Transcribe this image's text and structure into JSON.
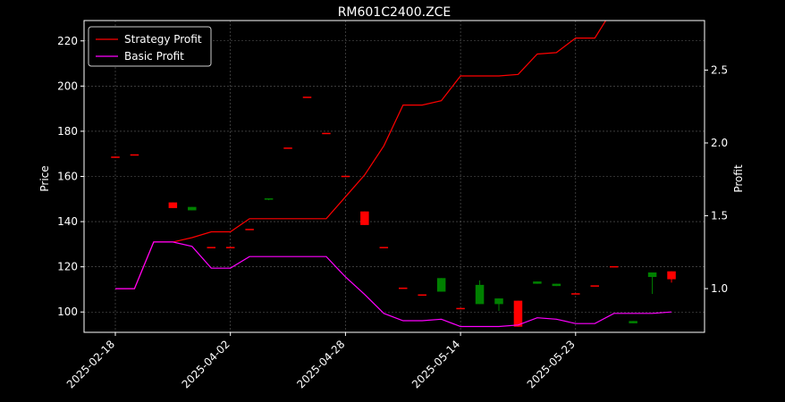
{
  "chart_data": {
    "type": "line",
    "title": "RM601C2400.ZCE",
    "ylabel_left": "Price",
    "ylabel_right": "Profit",
    "x_tick_labels": [
      "2025-02-18",
      "2025-04-02",
      "2025-04-28",
      "2025-05-14",
      "2025-05-23"
    ],
    "x_tick_positions": [
      0,
      6,
      12,
      18,
      24
    ],
    "left_ylim": [
      91,
      229
    ],
    "left_yticks": [
      100,
      120,
      140,
      160,
      180,
      200,
      220
    ],
    "right_ylim": [
      0.7,
      2.84
    ],
    "right_yticks": [
      1.0,
      1.5,
      2.0,
      2.5
    ],
    "right_ytick_labels": [
      "1.0",
      "1.5",
      "2.0",
      "2.5"
    ],
    "grid": true,
    "legend_position": "upper-left",
    "colors": {
      "background": "#000000",
      "up": "#ff0000",
      "down": "#008000",
      "strategy": "#ff0000",
      "basic": "#ff00ff",
      "grid": "#888888"
    },
    "candles": [
      {
        "i": 0,
        "open": 168.5,
        "close": 168.5,
        "high": 168.5,
        "low": 168.5
      },
      {
        "i": 1,
        "open": 169.5,
        "close": 169.5,
        "high": 169.5,
        "low": 169.5
      },
      {
        "i": 3,
        "open": 146,
        "close": 148.5,
        "high": 148.5,
        "low": 146
      },
      {
        "i": 4,
        "open": 146.5,
        "close": 145,
        "high": 146.5,
        "low": 145
      },
      {
        "i": 5,
        "open": 128.5,
        "close": 128.5,
        "high": 128.5,
        "low": 128.5
      },
      {
        "i": 6,
        "open": 128.5,
        "close": 128.5,
        "high": 128.5,
        "low": 128.5
      },
      {
        "i": 7,
        "open": 136.5,
        "close": 136.5,
        "high": 136.5,
        "low": 136.5
      },
      {
        "i": 8,
        "open": 150,
        "close": 149.5,
        "high": 150,
        "low": 149.5
      },
      {
        "i": 9,
        "open": 172.5,
        "close": 172.5,
        "high": 172.5,
        "low": 172.5
      },
      {
        "i": 10,
        "open": 195,
        "close": 195,
        "high": 195,
        "low": 195
      },
      {
        "i": 11,
        "open": 179,
        "close": 179,
        "high": 179,
        "low": 179
      },
      {
        "i": 12,
        "open": 160,
        "close": 160,
        "high": 160,
        "low": 160
      },
      {
        "i": 13,
        "open": 138.5,
        "close": 144.5,
        "high": 144.5,
        "low": 138.5
      },
      {
        "i": 14,
        "open": 128.5,
        "close": 128.5,
        "high": 128.5,
        "low": 128.5
      },
      {
        "i": 15,
        "open": 110.5,
        "close": 110.5,
        "high": 110.5,
        "low": 110.5
      },
      {
        "i": 16,
        "open": 107.5,
        "close": 107.5,
        "high": 107.5,
        "low": 107.5
      },
      {
        "i": 17,
        "open": 115,
        "close": 109,
        "high": 115,
        "low": 109
      },
      {
        "i": 18,
        "open": 101.5,
        "close": 101.5,
        "high": 101.5,
        "low": 101.5
      },
      {
        "i": 19,
        "open": 112,
        "close": 103.5,
        "high": 114,
        "low": 103.5
      },
      {
        "i": 20,
        "open": 106,
        "close": 103.5,
        "high": 106,
        "low": 100.5
      },
      {
        "i": 21,
        "open": 93.5,
        "close": 105,
        "high": 105,
        "low": 93.5
      },
      {
        "i": 22,
        "open": 113.5,
        "close": 112.5,
        "high": 113.5,
        "low": 112.5
      },
      {
        "i": 23,
        "open": 112.5,
        "close": 111.5,
        "high": 112.5,
        "low": 111.5
      },
      {
        "i": 24,
        "open": 108,
        "close": 108,
        "high": 108,
        "low": 108
      },
      {
        "i": 25,
        "open": 111.5,
        "close": 111.5,
        "high": 111.5,
        "low": 111.5
      },
      {
        "i": 26,
        "open": 120,
        "close": 120,
        "high": 120,
        "low": 120
      },
      {
        "i": 27,
        "open": 96,
        "close": 95,
        "high": 96,
        "low": 95
      },
      {
        "i": 28,
        "open": 117.5,
        "close": 115.5,
        "high": 117.5,
        "low": 108
      },
      {
        "i": 29,
        "open": 114.5,
        "close": 118,
        "high": 118,
        "low": 113
      }
    ],
    "series": [
      {
        "name": "Strategy Profit",
        "x": [
          0,
          1,
          2,
          3,
          4,
          5,
          6,
          7,
          8,
          9,
          10,
          11,
          12,
          13,
          14,
          15,
          16,
          17,
          18,
          19,
          20,
          21,
          22,
          23,
          24,
          25,
          26,
          27,
          28,
          29
        ],
        "values": [
          1.0,
          1.0,
          1.32,
          1.32,
          1.35,
          1.39,
          1.39,
          1.48,
          1.48,
          1.48,
          1.48,
          1.48,
          1.63,
          1.78,
          1.98,
          2.26,
          2.26,
          2.29,
          2.46,
          2.46,
          2.46,
          2.47,
          2.61,
          2.62,
          2.72,
          2.72,
          2.93,
          2.93,
          2.93,
          2.92
        ]
      },
      {
        "name": "Basic Profit",
        "x": [
          0,
          1,
          2,
          3,
          4,
          5,
          6,
          7,
          8,
          9,
          10,
          11,
          12,
          13,
          14,
          15,
          16,
          17,
          18,
          19,
          20,
          21,
          22,
          23,
          24,
          25,
          26,
          27,
          28,
          29
        ],
        "values": [
          1.0,
          1.0,
          1.32,
          1.32,
          1.29,
          1.14,
          1.14,
          1.22,
          1.22,
          1.22,
          1.22,
          1.22,
          1.08,
          0.96,
          0.83,
          0.78,
          0.78,
          0.79,
          0.74,
          0.74,
          0.74,
          0.75,
          0.8,
          0.79,
          0.76,
          0.76,
          0.83,
          0.83,
          0.83,
          0.84
        ]
      }
    ]
  }
}
